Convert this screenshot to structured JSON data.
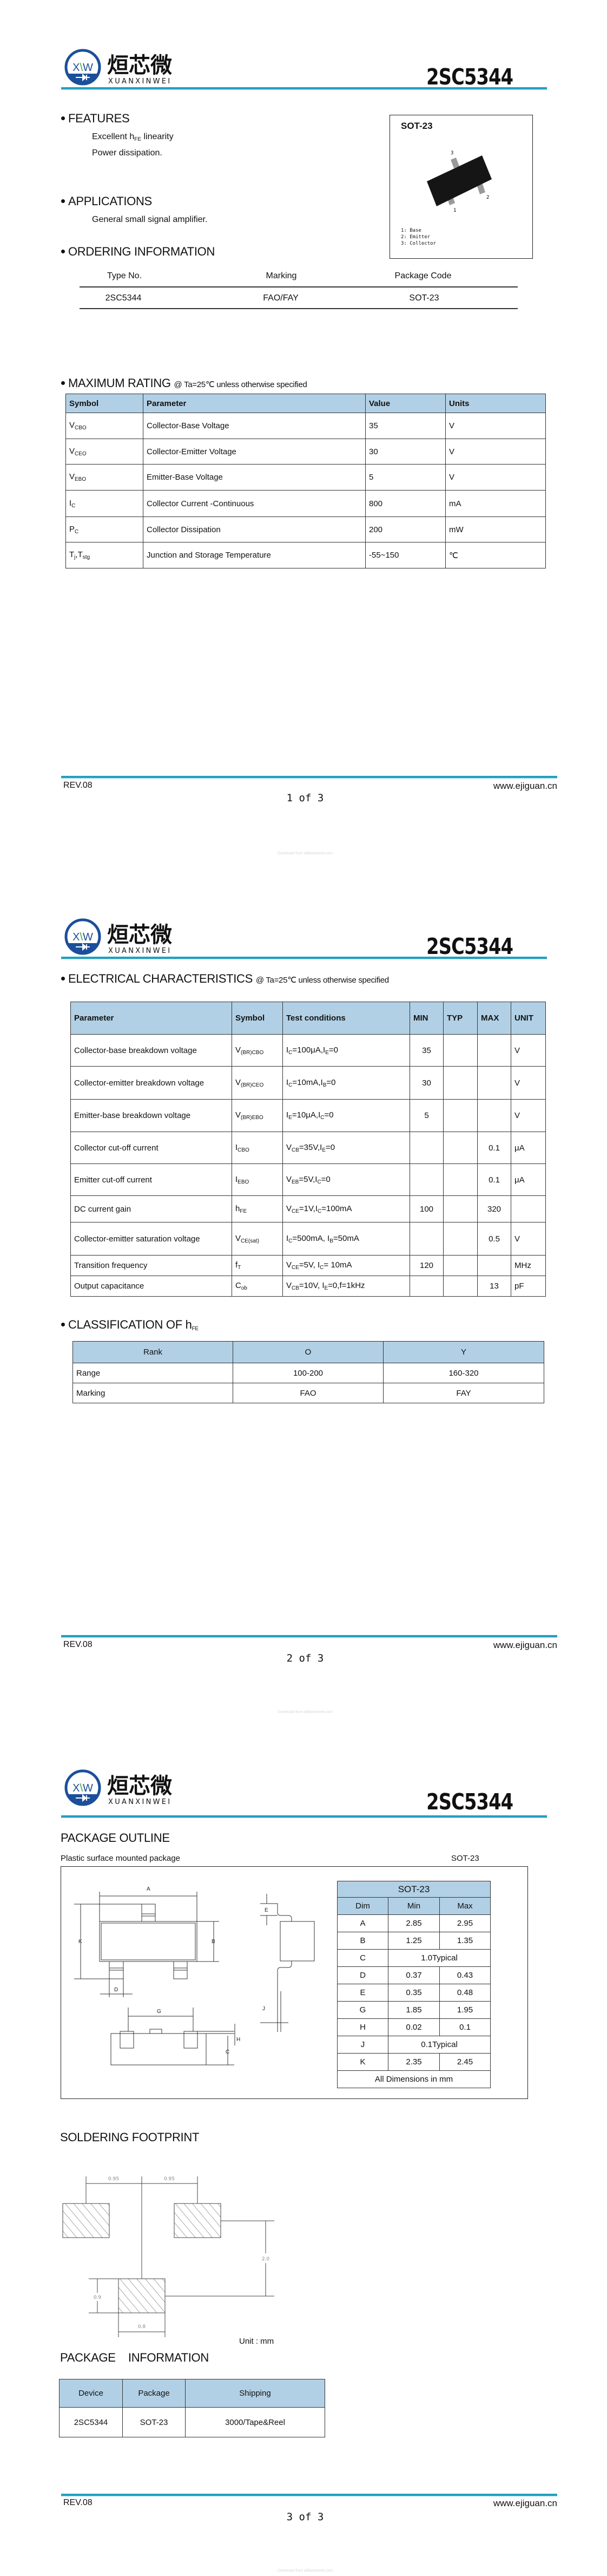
{
  "brand": {
    "logo_letters": "XW",
    "name_cn": "烜芯微",
    "name_en": "XUANXINWEI",
    "accent": "#23a0c0",
    "header_bg": "#b2d0e5",
    "logo_blue": "#1b4f9b"
  },
  "part_number": "2SC5344",
  "footer": {
    "revision": "REV.08",
    "website": "www.ejiguan.cn",
    "watermark": "Download from alldatasheet.com",
    "pages": [
      "1  of  3",
      "2  of  3",
      "3  of  3"
    ]
  },
  "page1": {
    "features": {
      "heading": "FEATURES",
      "items": [
        [
          {
            "t": "Excellent h"
          },
          {
            "s": "FE"
          },
          {
            "t": " linearity"
          }
        ],
        [
          {
            "t": "Power dissipation."
          }
        ]
      ]
    },
    "package_box": {
      "label": "SOT-23",
      "pins": [
        "1",
        "2",
        "3"
      ],
      "legend": [
        "1: Base",
        "2: Emitter",
        "3: Collector"
      ]
    },
    "applications": {
      "heading": "APPLICATIONS",
      "items": [
        "General small signal amplifier."
      ]
    },
    "ordering": {
      "heading": "ORDERING INFORMATION",
      "columns": [
        "Type No.",
        "Marking",
        "Package Code"
      ],
      "rows": [
        [
          "2SC5344",
          "FAO/FAY",
          "SOT-23"
        ]
      ]
    },
    "max_rating": {
      "heading": "MAXIMUM RATING",
      "condition": "@ Ta=25℃ unless otherwise specified",
      "columns": [
        "Symbol",
        "Parameter",
        "Value",
        "Units"
      ],
      "rows": [
        {
          "symbol": [
            {
              "t": "V"
            },
            {
              "s": "CBO"
            }
          ],
          "parameter": "Collector-Base Voltage",
          "value": "35",
          "unit": "V"
        },
        {
          "symbol": [
            {
              "t": "V"
            },
            {
              "s": "CEO"
            }
          ],
          "parameter": "Collector-Emitter Voltage",
          "value": "30",
          "unit": "V"
        },
        {
          "symbol": [
            {
              "t": "V"
            },
            {
              "s": "EBO"
            }
          ],
          "parameter": "Emitter-Base Voltage",
          "value": "5",
          "unit": "V"
        },
        {
          "symbol": [
            {
              "t": "I"
            },
            {
              "s": "C"
            }
          ],
          "parameter": "Collector Current -Continuous",
          "value": "800",
          "unit": "mA"
        },
        {
          "symbol": [
            {
              "t": "P"
            },
            {
              "s": "C"
            }
          ],
          "parameter": "Collector Dissipation",
          "value": "200",
          "unit": "mW"
        },
        {
          "symbol": [
            {
              "t": "T"
            },
            {
              "s": "j"
            },
            {
              "t": ",T"
            },
            {
              "s": "stg"
            }
          ],
          "parameter": "Junction and Storage Temperature",
          "value": "-55~150",
          "unit": "℃"
        }
      ]
    }
  },
  "page2": {
    "electrical": {
      "heading": "ELECTRICAL CHARACTERISTICS",
      "condition": "@ Ta=25℃ unless otherwise specified",
      "columns": [
        "Parameter",
        "Symbol",
        "Test conditions",
        "MIN",
        "TYP",
        "MAX",
        "UNIT"
      ],
      "rows": [
        {
          "parameter": "Collector-base breakdown voltage",
          "symbol": [
            {
              "t": "V"
            },
            {
              "s": "(BR)CBO"
            }
          ],
          "conditions": [
            {
              "t": "I"
            },
            {
              "s": "C"
            },
            {
              "t": "=100μA,I"
            },
            {
              "s": "E"
            },
            {
              "t": "=0"
            }
          ],
          "min": "35",
          "typ": "",
          "max": "",
          "unit": "V"
        },
        {
          "parameter": "Collector-emitter breakdown voltage",
          "symbol": [
            {
              "t": "V"
            },
            {
              "s": "(BR)CEO"
            }
          ],
          "conditions": [
            {
              "t": "I"
            },
            {
              "s": "C"
            },
            {
              "t": "=10mA,I"
            },
            {
              "s": "B"
            },
            {
              "t": "=0"
            }
          ],
          "min": "30",
          "typ": "",
          "max": "",
          "unit": "V"
        },
        {
          "parameter": "Emitter-base breakdown voltage",
          "symbol": [
            {
              "t": "V"
            },
            {
              "s": "(BR)EBO"
            }
          ],
          "conditions": [
            {
              "t": "I"
            },
            {
              "s": "E"
            },
            {
              "t": "=10μA,I"
            },
            {
              "s": "C"
            },
            {
              "t": "=0"
            }
          ],
          "min": "5",
          "typ": "",
          "max": "",
          "unit": "V"
        },
        {
          "parameter": "Collector cut-off current",
          "symbol": [
            {
              "t": "I"
            },
            {
              "s": "CBO"
            }
          ],
          "conditions": [
            {
              "t": "V"
            },
            {
              "s": "CB"
            },
            {
              "t": "=35V,I"
            },
            {
              "s": "E"
            },
            {
              "t": "=0"
            }
          ],
          "min": "",
          "typ": "",
          "max": "0.1",
          "unit": "μA"
        },
        {
          "parameter": "Emitter cut-off current",
          "symbol": [
            {
              "t": "I"
            },
            {
              "s": "EBO"
            }
          ],
          "conditions": [
            {
              "t": "V"
            },
            {
              "s": "EB"
            },
            {
              "t": "=5V,I"
            },
            {
              "s": "C"
            },
            {
              "t": "=0"
            }
          ],
          "min": "",
          "typ": "",
          "max": "0.1",
          "unit": "μA"
        },
        {
          "parameter": "DC current gain",
          "symbol": [
            {
              "t": "h"
            },
            {
              "s": "FE"
            }
          ],
          "conditions": [
            {
              "t": "V"
            },
            {
              "s": "CE"
            },
            {
              "t": "=1V,I"
            },
            {
              "s": "C"
            },
            {
              "t": "=100mA"
            }
          ],
          "min": "100",
          "typ": "",
          "max": "320",
          "unit": ""
        },
        {
          "parameter": "Collector-emitter saturation voltage",
          "symbol": [
            {
              "t": "V"
            },
            {
              "s": "CE(sat)"
            }
          ],
          "conditions": [
            {
              "t": "I"
            },
            {
              "s": "C"
            },
            {
              "t": "=500mA, I"
            },
            {
              "s": "B"
            },
            {
              "t": "=50mA"
            }
          ],
          "min": "",
          "typ": "",
          "max": "0.5",
          "unit": "V"
        },
        {
          "parameter": "Transition frequency",
          "symbol": [
            {
              "t": "f"
            },
            {
              "s": "T"
            }
          ],
          "conditions": [
            {
              "t": "V"
            },
            {
              "s": "CE"
            },
            {
              "t": "=5V, I"
            },
            {
              "s": "C"
            },
            {
              "t": "= 10mA"
            }
          ],
          "min": "120",
          "typ": "",
          "max": "",
          "unit": "MHz"
        },
        {
          "parameter": "Output capacitance",
          "symbol": [
            {
              "t": "C"
            },
            {
              "s": "ob"
            }
          ],
          "conditions": [
            {
              "t": "V"
            },
            {
              "s": "CB"
            },
            {
              "t": "=10V, I"
            },
            {
              "s": "E"
            },
            {
              "t": "=0,f=1kHz"
            }
          ],
          "min": "",
          "typ": "",
          "max": "13",
          "unit": "pF"
        }
      ]
    },
    "classification": {
      "heading": [
        {
          "t": "CLASSIFICATION    OF    h"
        },
        {
          "s": "FE"
        }
      ],
      "columns": [
        "Rank",
        "O",
        "Y"
      ],
      "rows": [
        [
          "Range",
          "100-200",
          "160-320"
        ],
        [
          "Marking",
          "FAO",
          "FAY"
        ]
      ]
    }
  },
  "page3": {
    "outline": {
      "heading": "PACKAGE OUTLINE",
      "subtitle": "Plastic surface mounted package",
      "package": "SOT-23",
      "drawing_labels": [
        "A",
        "B",
        "C",
        "D",
        "E",
        "G",
        "H",
        "J",
        "K"
      ],
      "dim_table": {
        "title": "SOT-23",
        "columns": [
          "Dim",
          "Min",
          "Max"
        ],
        "rows": [
          [
            "A",
            "2.85",
            "2.95"
          ],
          [
            "B",
            "1.25",
            "1.35"
          ],
          [
            "C",
            "1.0Typical"
          ],
          [
            "D",
            "0.37",
            "0.43"
          ],
          [
            "E",
            "0.35",
            "0.48"
          ],
          [
            "G",
            "1.85",
            "1.95"
          ],
          [
            "H",
            "0.02",
            "0.1"
          ],
          [
            "J",
            "0.1Typical"
          ],
          [
            "K",
            "2.35",
            "2.45"
          ]
        ],
        "note": "All Dimensions in mm"
      }
    },
    "footprint": {
      "heading": "SOLDERING FOOTPRINT",
      "dims": [
        "0.95",
        "0.95",
        "2.0",
        "0.9",
        "0.8"
      ],
      "unit": "Unit : mm"
    },
    "package_info": {
      "heading": "PACKAGE    INFORMATION",
      "columns": [
        "Device",
        "Package",
        "Shipping"
      ],
      "rows": [
        [
          "2SC5344",
          "SOT-23",
          "3000/Tape&Reel"
        ]
      ]
    }
  }
}
